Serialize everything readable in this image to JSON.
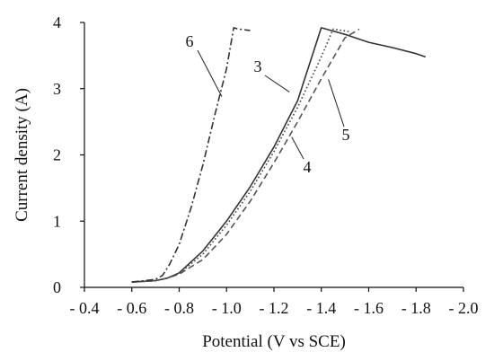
{
  "chart_data": {
    "type": "line",
    "title": "",
    "xlabel": "Potential (V vs SCE)",
    "ylabel": "Current density (A)",
    "xlim": [
      -0.4,
      -2.0
    ],
    "ylim": [
      0,
      4
    ],
    "grid": false,
    "x_ticks": [
      -0.4,
      -0.6,
      -0.8,
      -1.0,
      -1.2,
      -1.4,
      -1.6,
      -1.8,
      -2.0
    ],
    "x_tick_labels": [
      "- 0.4",
      "- 0.6",
      "- 0.8",
      "- 1.0",
      "- 1.2",
      "- 1.4",
      "- 1.6",
      "- 1.8",
      "- 2.0"
    ],
    "y_ticks": [
      0,
      1,
      2,
      3,
      4
    ],
    "y_tick_labels": [
      "0",
      "1",
      "2",
      "3",
      "4"
    ],
    "series": [
      {
        "name": "3",
        "style": "solid",
        "color": "#333333",
        "x": [
          -0.6,
          -0.7,
          -0.75,
          -0.8,
          -0.9,
          -1.0,
          -1.1,
          -1.2,
          -1.3,
          -1.4,
          -1.5,
          -1.6,
          -1.7,
          -1.8,
          -1.84
        ],
        "y": [
          0.08,
          0.1,
          0.14,
          0.22,
          0.55,
          1.0,
          1.52,
          2.12,
          2.82,
          3.92,
          3.82,
          3.7,
          3.62,
          3.53,
          3.48
        ]
      },
      {
        "name": "4",
        "style": "dashed",
        "color": "#555555",
        "x": [
          -0.6,
          -0.7,
          -0.75,
          -0.8,
          -0.9,
          -1.0,
          -1.1,
          -1.2,
          -1.3,
          -1.4,
          -1.5,
          -1.56
        ],
        "y": [
          0.08,
          0.1,
          0.14,
          0.2,
          0.42,
          0.8,
          1.3,
          1.88,
          2.5,
          3.15,
          3.77,
          3.9
        ]
      },
      {
        "name": "5",
        "style": "dotted",
        "color": "#444444",
        "x": [
          -0.6,
          -0.7,
          -0.75,
          -0.8,
          -0.9,
          -1.0,
          -1.1,
          -1.2,
          -1.3,
          -1.4,
          -1.45,
          -1.52
        ],
        "y": [
          0.08,
          0.1,
          0.14,
          0.21,
          0.5,
          0.94,
          1.45,
          2.05,
          2.72,
          3.48,
          3.9,
          3.86
        ]
      },
      {
        "name": "6",
        "style": "dashdot",
        "color": "#333333",
        "x": [
          -0.6,
          -0.7,
          -0.73,
          -0.76,
          -0.8,
          -0.85,
          -0.9,
          -0.95,
          -1.0,
          -1.03,
          -1.05,
          -1.1
        ],
        "y": [
          0.08,
          0.12,
          0.18,
          0.35,
          0.65,
          1.2,
          1.85,
          2.6,
          3.3,
          3.92,
          3.9,
          3.88
        ]
      }
    ]
  }
}
